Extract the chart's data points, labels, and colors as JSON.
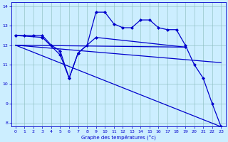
{
  "xlabel": "Graphe des températures (°c)",
  "bg_color": "#cceeff",
  "line_color": "#0000cc",
  "xlim": [
    -0.5,
    23.5
  ],
  "ylim": [
    7.8,
    14.2
  ],
  "yticks": [
    8,
    9,
    10,
    11,
    12,
    13,
    14
  ],
  "xticks": [
    0,
    1,
    2,
    3,
    4,
    5,
    6,
    7,
    8,
    9,
    10,
    11,
    12,
    13,
    14,
    15,
    16,
    17,
    18,
    19,
    20,
    21,
    22,
    23
  ],
  "series": [
    {
      "x": [
        0,
        1,
        2,
        3,
        4,
        5,
        6,
        7,
        8,
        9,
        10,
        11,
        12,
        13,
        14,
        15,
        16,
        17,
        18,
        19,
        20,
        21,
        22,
        23
      ],
      "y": [
        12.5,
        12.5,
        12.5,
        12.5,
        12.0,
        11.7,
        10.3,
        11.6,
        12.0,
        13.7,
        13.7,
        13.1,
        12.9,
        12.9,
        13.3,
        13.3,
        12.9,
        12.8,
        12.8,
        12.0,
        11.0,
        10.3,
        9.0,
        7.8
      ],
      "marker": "D",
      "markersize": 2.0,
      "lw": 0.9
    },
    {
      "x": [
        0,
        3,
        5,
        6,
        7,
        9,
        19
      ],
      "y": [
        12.5,
        12.4,
        11.5,
        10.3,
        11.6,
        12.4,
        11.9
      ],
      "marker": "D",
      "markersize": 2.0,
      "lw": 0.9
    },
    {
      "x": [
        0,
        19
      ],
      "y": [
        12.0,
        11.9
      ],
      "marker": null,
      "markersize": 0,
      "lw": 0.9
    },
    {
      "x": [
        0,
        23
      ],
      "y": [
        12.0,
        11.1
      ],
      "marker": null,
      "markersize": 0,
      "lw": 0.9
    },
    {
      "x": [
        0,
        23
      ],
      "y": [
        12.0,
        7.8
      ],
      "marker": null,
      "markersize": 0,
      "lw": 0.9
    }
  ]
}
